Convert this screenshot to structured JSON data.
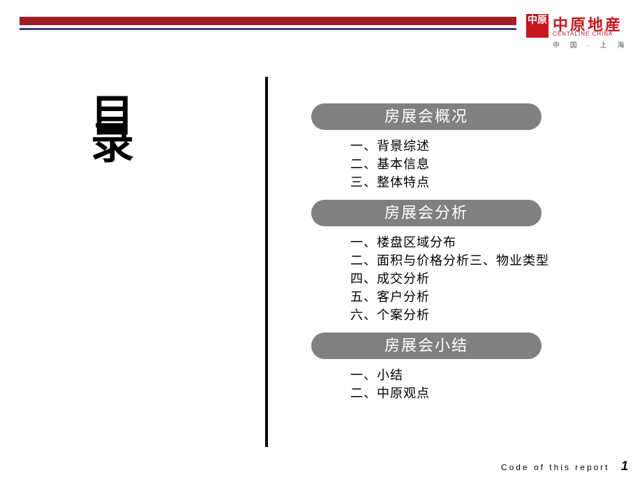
{
  "logo": {
    "square_text": "中原",
    "cn": "中原地産",
    "en": "CENTALINE CHINA",
    "sub": "中 国 · 上 海"
  },
  "toc_label_1": "目",
  "toc_label_2": "录",
  "sections": [
    {
      "title": "房展会概况",
      "items": "一、背景综述\n二、基本信息\n三、整体特点"
    },
    {
      "title": "房展会分析",
      "items": "一、楼盘区域分布\n二、面积与价格分析三、物业类型\n四、成交分析\n五、客户分析\n六、个案分析"
    },
    {
      "title": "房展会小结",
      "items": "一、小结\n二、中原观点"
    }
  ],
  "footer": {
    "code": "Code of this report",
    "page": "1"
  },
  "colors": {
    "brand_red": "#a01f24",
    "logo_red": "#c8161d",
    "navy": "#3d3d8f",
    "pill_gray": "#808080"
  }
}
